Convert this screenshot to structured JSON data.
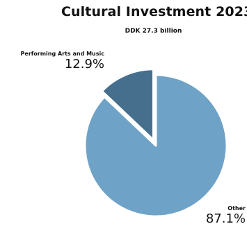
{
  "chart_data": {
    "type": "pie",
    "title": "Cultural Investment 2023",
    "subtitle": "DDK 27.3 billion",
    "slices": [
      {
        "label": "Performing Arts and Music",
        "value": 12.9,
        "value_label": "12.9%",
        "color": "#466f8d",
        "exploded": true
      },
      {
        "label": "Other",
        "value": 87.1,
        "value_label": "87.1%",
        "color": "#6fa2c7",
        "exploded": false
      }
    ],
    "legend": "none",
    "stroke_color": "#ffffff"
  }
}
